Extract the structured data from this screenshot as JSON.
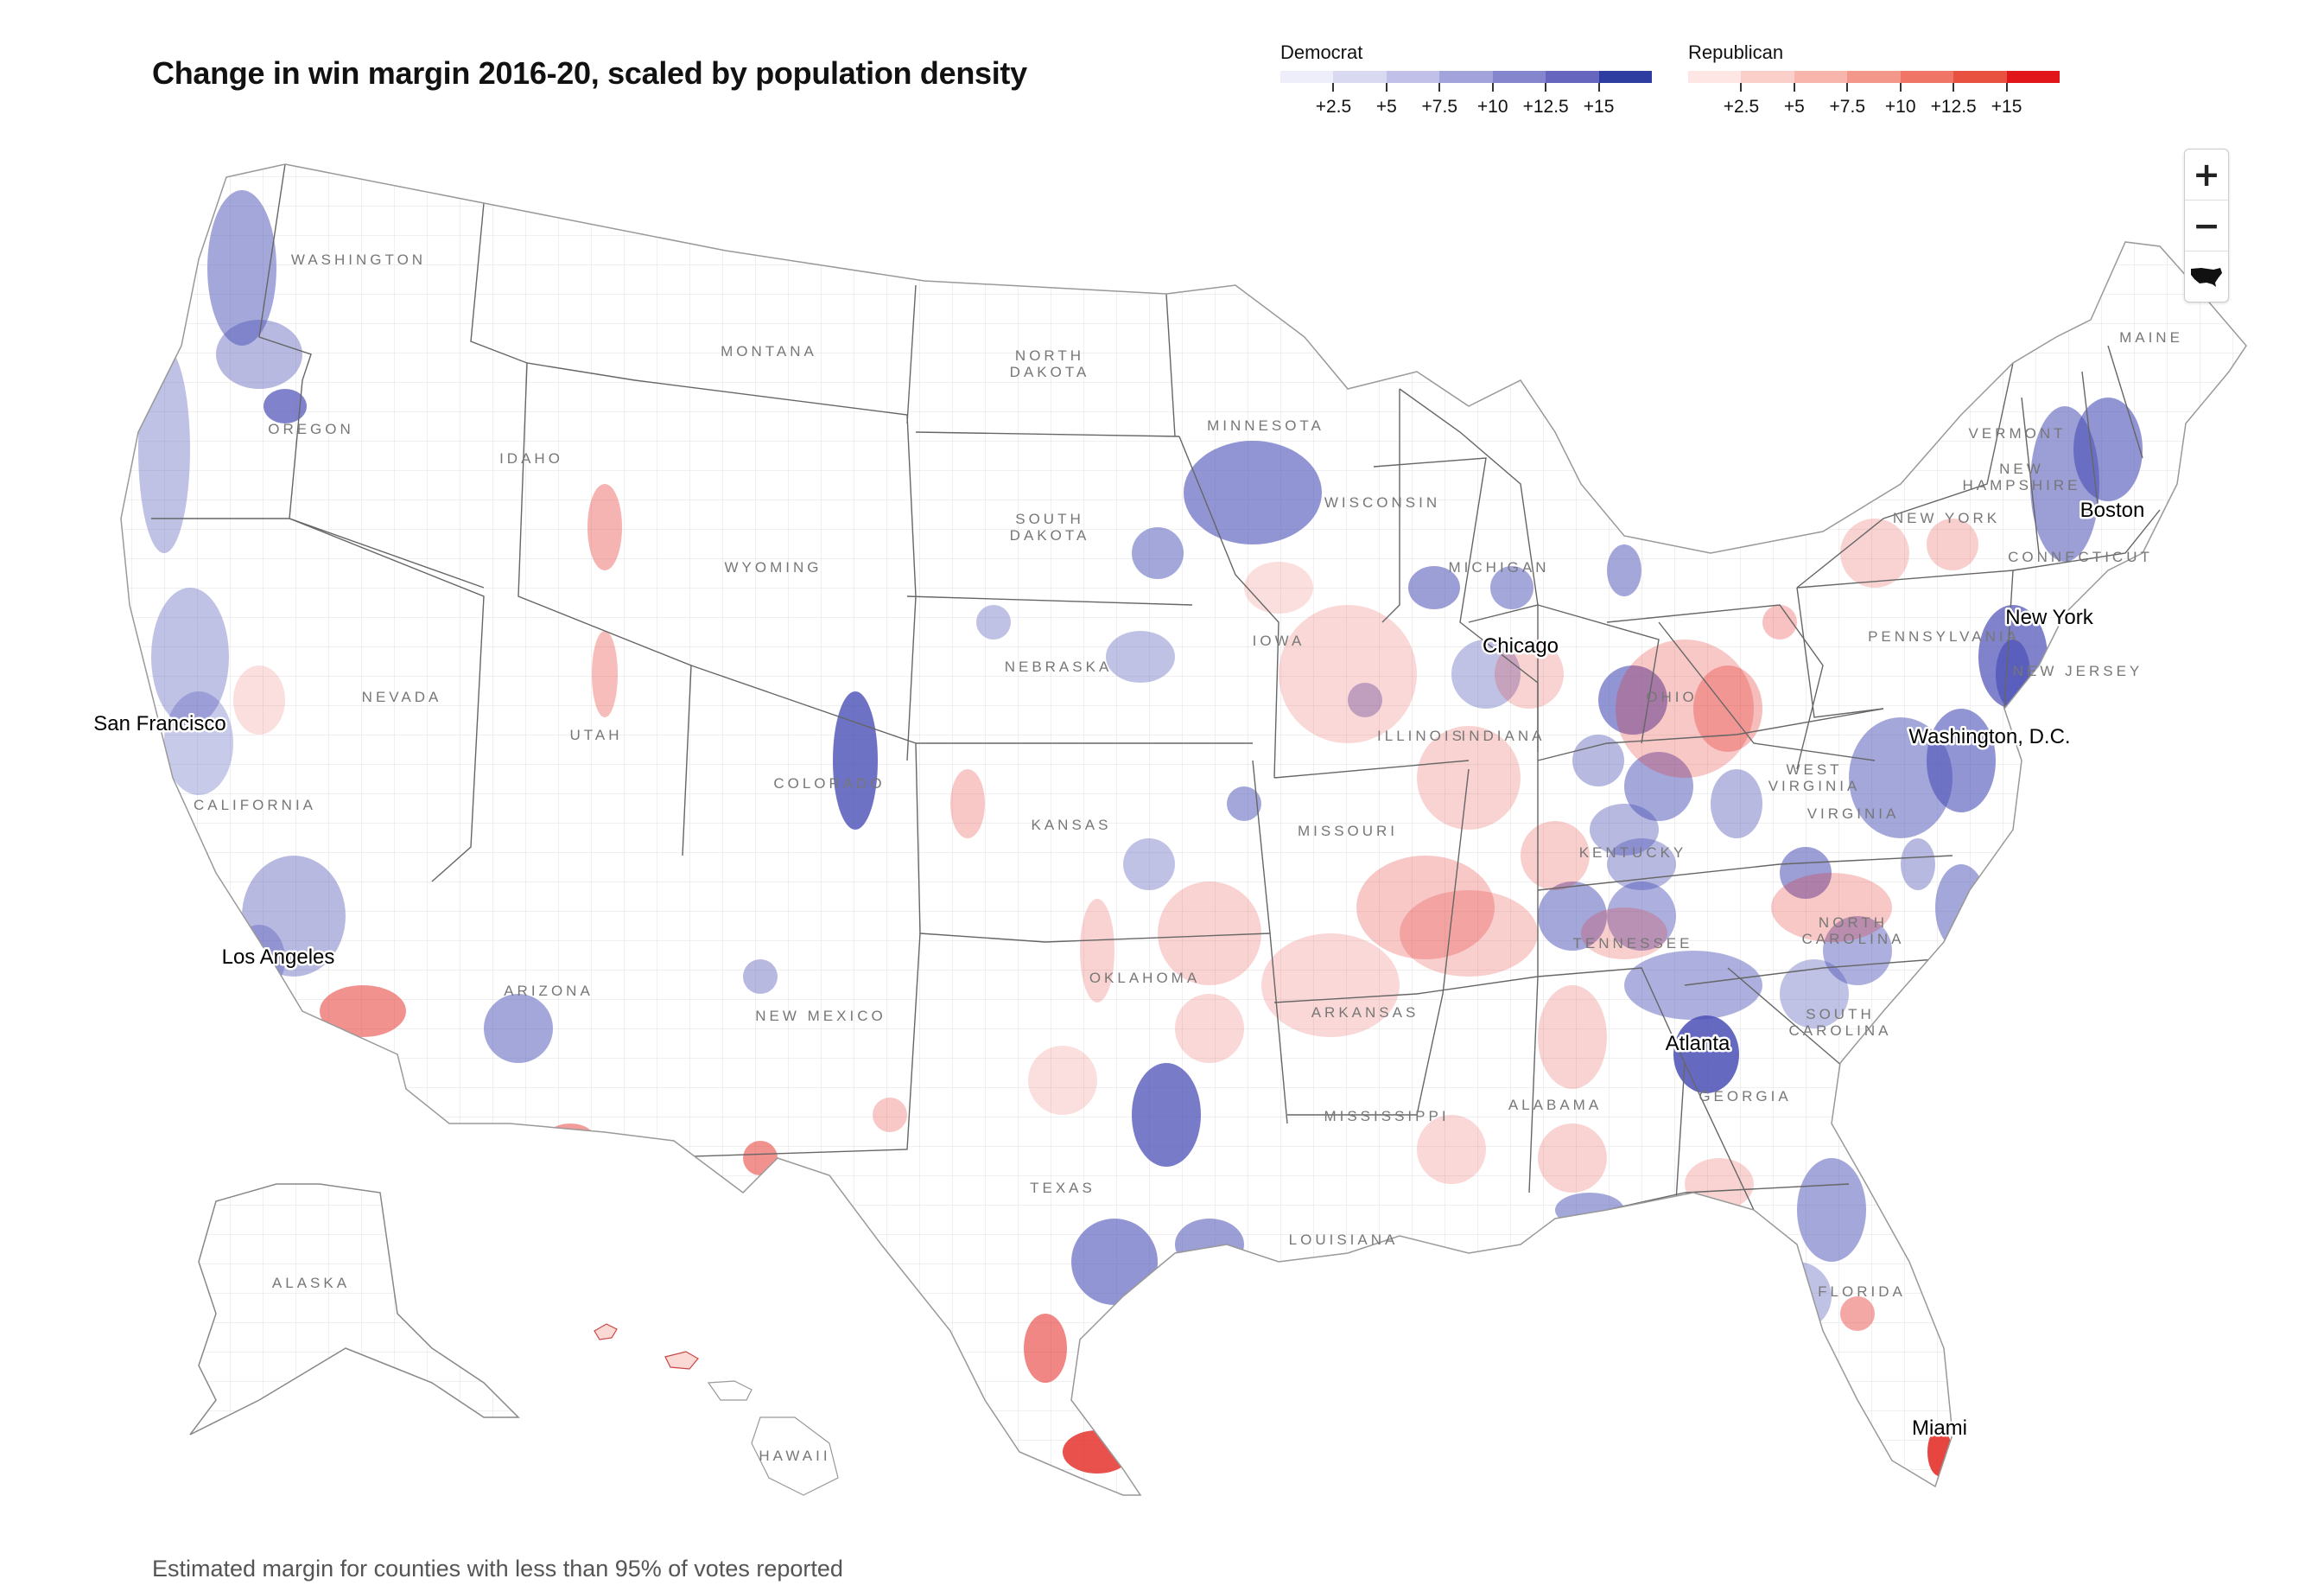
{
  "title": "Change in win margin 2016-20, scaled by population density",
  "legend": {
    "democrat": {
      "label": "Democrat",
      "ticks": [
        "+2.5",
        "+5",
        "+7.5",
        "+10",
        "+12.5",
        "+15"
      ],
      "colors": [
        "#eeeefa",
        "#d9d9f2",
        "#c0c0e8",
        "#a3a3db",
        "#8585ce",
        "#6666bf",
        "#2e3da0"
      ]
    },
    "republican": {
      "label": "Republican",
      "ticks": [
        "+2.5",
        "+5",
        "+7.5",
        "+10",
        "+12.5",
        "+15"
      ],
      "colors": [
        "#fde6e4",
        "#fbcfc9",
        "#f8b5ac",
        "#f4978b",
        "#ef7566",
        "#e8503f",
        "#e0161b"
      ]
    }
  },
  "states": [
    "WASHINGTON",
    "OREGON",
    "CALIFORNIA",
    "NEVADA",
    "IDAHO",
    "MONTANA",
    "WYOMING",
    "UTAH",
    "COLORADO",
    "ARIZONA",
    "NEW MEXICO",
    "NORTH DAKOTA",
    "SOUTH DAKOTA",
    "NEBRASKA",
    "KANSAS",
    "OKLAHOMA",
    "TEXAS",
    "MINNESOTA",
    "IOWA",
    "MISSOURI",
    "ARKANSAS",
    "LOUISIANA",
    "WISCONSIN",
    "ILLINOIS",
    "MICHIGAN",
    "INDIANA",
    "OHIO",
    "KENTUCKY",
    "TENNESSEE",
    "MISSISSIPPI",
    "ALABAMA",
    "GEORGIA",
    "FLORIDA",
    "SOUTH CAROLINA",
    "NORTH CAROLINA",
    "VIRGINIA",
    "WEST VIRGINIA",
    "PENNSYLVANIA",
    "NEW YORK",
    "VERMONT",
    "NEW HAMPSHIRE",
    "MAINE",
    "CONNECTICUT",
    "NEW JERSEY",
    "ALASKA",
    "HAWAII"
  ],
  "cities": [
    "San Francisco",
    "Los Angeles",
    "Chicago",
    "New York",
    "Boston",
    "Washington, D.C.",
    "Atlanta",
    "Miami"
  ],
  "zoom": {
    "in": "+",
    "out": "−",
    "reset_icon": "usa-map-icon"
  },
  "footnote": "Estimated margin for counties with less than 95% of votes reported",
  "colors": {
    "state_border": "#555555",
    "county_border": "#dddddd",
    "dem": "#4a4fb5",
    "rep": "#e3251f"
  }
}
